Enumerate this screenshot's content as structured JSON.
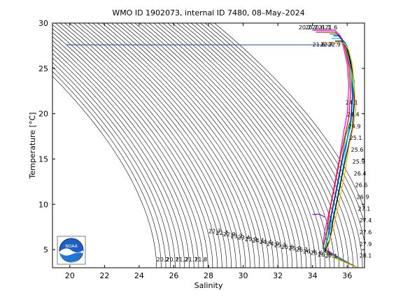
{
  "chart_data": {
    "type": "line",
    "title": "WMO ID 1902073, internal ID 7480, 08–May–2024",
    "xlabel": "Salinity",
    "ylabel": "Temperature [°C]",
    "xlim": [
      19,
      37
    ],
    "ylim": [
      3,
      30
    ],
    "xticks": [
      20,
      22,
      24,
      26,
      28,
      30,
      32,
      34,
      36
    ],
    "yticks": [
      5,
      10,
      15,
      20,
      25,
      30
    ],
    "grid": false,
    "background_contours": "density (sigma-theta) isopycnals",
    "density_labels_bottom": [
      "20.2",
      "20.7",
      "21.2",
      "21.7",
      "21.8"
    ],
    "density_labels_middle": [
      "22.7",
      "22.7",
      "22.9",
      "23.2",
      "23.4",
      "23.9",
      "24.1",
      "24.4",
      "24.9",
      "25.1",
      "25.6",
      "25.9",
      "26.1",
      "26.4",
      "26.6",
      "26.9",
      "27.1"
    ],
    "density_labels_top": [
      "20.2",
      "20.2",
      "20.6",
      "21.1",
      "21.6"
    ],
    "density_labels_top2": [
      "21.6",
      "22.7",
      "22.9"
    ],
    "density_labels_right": [
      "24.1",
      "24.4",
      "24.9",
      "25.1",
      "25.6",
      "25.9",
      "26.4",
      "26.6",
      "26.9",
      "27.1",
      "27.4",
      "27.6",
      "27.9",
      "28.1"
    ],
    "reference_line": {
      "temperature": 27.6,
      "salinity_from": 19.8,
      "salinity_to": 35.2,
      "color": "#1f3fbf"
    },
    "series": [
      {
        "color": "#ff00ff",
        "points": [
          [
            34.0,
            29.2
          ],
          [
            35.3,
            29.2
          ],
          [
            35.6,
            28.6
          ],
          [
            35.8,
            27.2
          ],
          [
            36.0,
            25.5
          ],
          [
            36.1,
            23.0
          ],
          [
            36.0,
            20.0
          ],
          [
            35.8,
            18.0
          ],
          [
            35.6,
            15.5
          ],
          [
            35.3,
            12.5
          ],
          [
            35.0,
            9.5
          ],
          [
            34.7,
            7.0
          ],
          [
            34.6,
            5.3
          ],
          [
            35.2,
            4.5
          ],
          [
            36.2,
            3.4
          ]
        ]
      },
      {
        "color": "#ff0000",
        "points": [
          [
            34.2,
            29.0
          ],
          [
            35.3,
            29.0
          ],
          [
            35.7,
            28.3
          ],
          [
            35.9,
            27.0
          ],
          [
            36.1,
            25.2
          ],
          [
            36.2,
            22.5
          ],
          [
            36.1,
            19.6
          ],
          [
            35.9,
            17.8
          ],
          [
            35.6,
            15.2
          ],
          [
            35.3,
            12.2
          ],
          [
            35.0,
            9.3
          ],
          [
            34.8,
            6.8
          ],
          [
            34.6,
            5.2
          ],
          [
            35.2,
            4.4
          ],
          [
            36.3,
            3.3
          ]
        ]
      },
      {
        "color": "#00aa00",
        "points": [
          [
            35.0,
            28.8
          ],
          [
            35.4,
            28.8
          ],
          [
            35.8,
            28.0
          ],
          [
            36.0,
            26.6
          ],
          [
            36.2,
            24.8
          ],
          [
            36.3,
            22.0
          ],
          [
            36.2,
            19.3
          ],
          [
            35.9,
            17.5
          ],
          [
            35.7,
            15.0
          ],
          [
            35.4,
            12.0
          ],
          [
            35.1,
            9.1
          ],
          [
            34.8,
            6.6
          ],
          [
            34.6,
            5.1
          ],
          [
            35.3,
            4.3
          ],
          [
            36.4,
            3.2
          ]
        ]
      },
      {
        "color": "#0000ff",
        "points": [
          [
            35.2,
            28.6
          ],
          [
            35.5,
            28.6
          ],
          [
            35.9,
            27.8
          ],
          [
            36.1,
            26.3
          ],
          [
            36.3,
            24.4
          ],
          [
            36.3,
            21.6
          ],
          [
            36.2,
            19.0
          ],
          [
            36.0,
            17.2
          ],
          [
            35.7,
            14.7
          ],
          [
            35.4,
            11.7
          ],
          [
            35.1,
            8.9
          ],
          [
            34.9,
            6.5
          ],
          [
            34.7,
            5.0
          ],
          [
            35.3,
            4.2
          ],
          [
            36.4,
            3.2
          ]
        ]
      },
      {
        "color": "#00cccc",
        "points": [
          [
            35.1,
            28.3
          ],
          [
            35.6,
            28.3
          ],
          [
            36.0,
            27.5
          ],
          [
            36.2,
            26.0
          ],
          [
            36.3,
            24.0
          ],
          [
            36.4,
            21.2
          ],
          [
            36.2,
            18.7
          ],
          [
            36.0,
            17.0
          ],
          [
            35.8,
            14.4
          ],
          [
            35.5,
            11.4
          ],
          [
            35.2,
            8.7
          ],
          [
            34.9,
            6.3
          ],
          [
            34.7,
            4.9
          ],
          [
            35.4,
            4.1
          ],
          [
            36.5,
            3.1
          ]
        ]
      },
      {
        "color": "#000000",
        "points": [
          [
            35.3,
            28.0
          ],
          [
            35.7,
            28.0
          ],
          [
            36.0,
            27.2
          ],
          [
            36.2,
            25.7
          ],
          [
            36.4,
            23.6
          ],
          [
            36.4,
            20.8
          ],
          [
            36.3,
            18.4
          ],
          [
            36.1,
            16.7
          ],
          [
            35.8,
            14.1
          ],
          [
            35.5,
            11.1
          ],
          [
            35.2,
            8.4
          ],
          [
            35.0,
            6.1
          ],
          [
            34.7,
            4.8
          ],
          [
            35.4,
            4.0
          ],
          [
            36.5,
            3.1
          ]
        ]
      },
      {
        "color": "#ffaa00",
        "points": [
          [
            34.6,
            27.8
          ],
          [
            35.8,
            27.8
          ],
          [
            36.1,
            27.0
          ],
          [
            36.3,
            25.4
          ],
          [
            36.4,
            23.2
          ],
          [
            36.5,
            20.4
          ],
          [
            36.3,
            18.1
          ],
          [
            36.1,
            16.4
          ],
          [
            35.9,
            13.8
          ],
          [
            35.6,
            10.8
          ],
          [
            35.3,
            8.2
          ],
          [
            35.0,
            6.0
          ],
          [
            34.8,
            4.7
          ],
          [
            35.5,
            3.9
          ],
          [
            36.6,
            3.0
          ]
        ]
      },
      {
        "color": "#7f00ff",
        "points": [
          [
            34.0,
            8.9
          ],
          [
            34.4,
            8.9
          ],
          [
            34.7,
            8.6
          ]
        ]
      }
    ]
  }
}
